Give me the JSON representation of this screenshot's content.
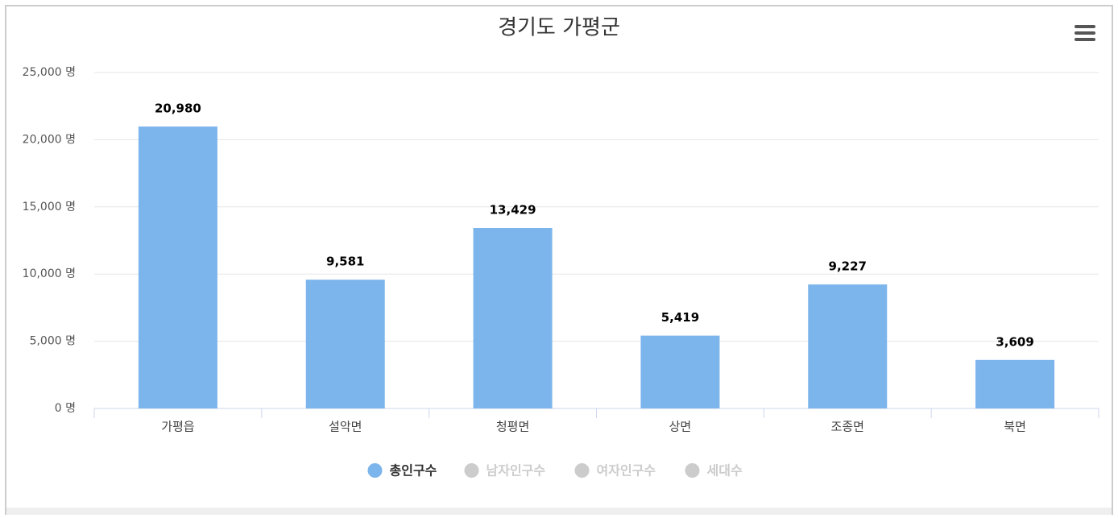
{
  "chart_data": {
    "type": "bar",
    "title": "경기도 가평군",
    "categories": [
      "가평읍",
      "설악면",
      "청평면",
      "상면",
      "조종면",
      "북면"
    ],
    "series": [
      {
        "name": "총인구수",
        "color": "#7cb5ec",
        "values": [
          20980,
          9581,
          13429,
          5419,
          9227,
          3609
        ],
        "value_labels": [
          "20,980",
          "9,581",
          "13,429",
          "5,419",
          "9,227",
          "3,609"
        ]
      },
      {
        "name": "남자인구수",
        "visible": false
      },
      {
        "name": "여자인구수",
        "visible": false
      },
      {
        "name": "세대수",
        "visible": false
      }
    ],
    "ylim": [
      0,
      25000
    ],
    "yticks": [
      {
        "value": 0,
        "label": "0 명"
      },
      {
        "value": 5000,
        "label": "5,000 명"
      },
      {
        "value": 10000,
        "label": "10,000 명"
      },
      {
        "value": 15000,
        "label": "15,000 명"
      },
      {
        "value": 20000,
        "label": "20,000 명"
      },
      {
        "value": 25000,
        "label": "25,000 명"
      }
    ],
    "grid": true,
    "legend": "bottom"
  }
}
